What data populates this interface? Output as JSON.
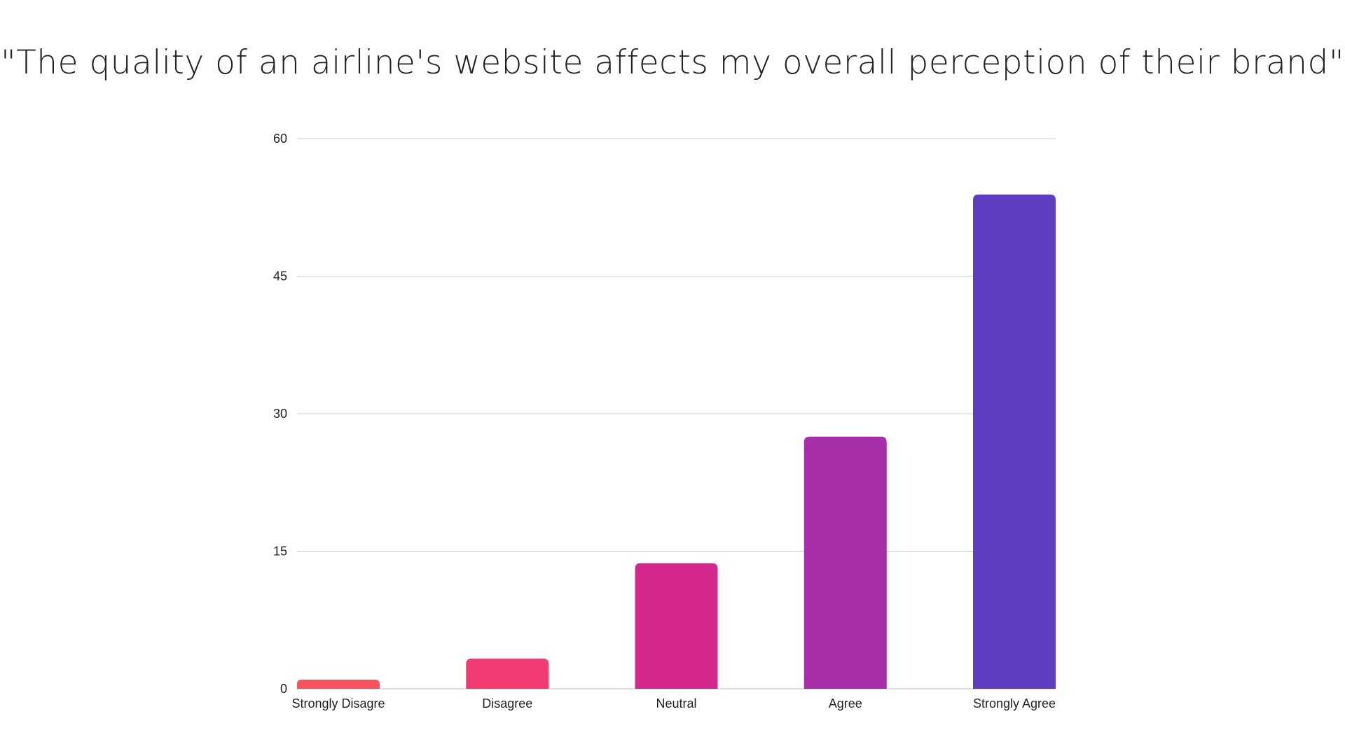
{
  "chart_data": {
    "type": "bar",
    "title": "\"The quality of an airline's website affects my overall perception of their brand\"",
    "xlabel": "",
    "ylabel": "",
    "categories": [
      "Strongly Disagre",
      "Disagree",
      "Neutral",
      "Agree",
      "Strongly Agree"
    ],
    "values": [
      1,
      3.3,
      13.7,
      27.5,
      53.9
    ],
    "ylim": [
      0,
      60
    ],
    "yticks": [
      "0",
      "15",
      "30",
      "45",
      "60"
    ],
    "grid": true,
    "legend": "none",
    "colors": [
      "#f7535f",
      "#f23b73",
      "#d4288e",
      "#a82faa",
      "#5f3dbf"
    ]
  }
}
